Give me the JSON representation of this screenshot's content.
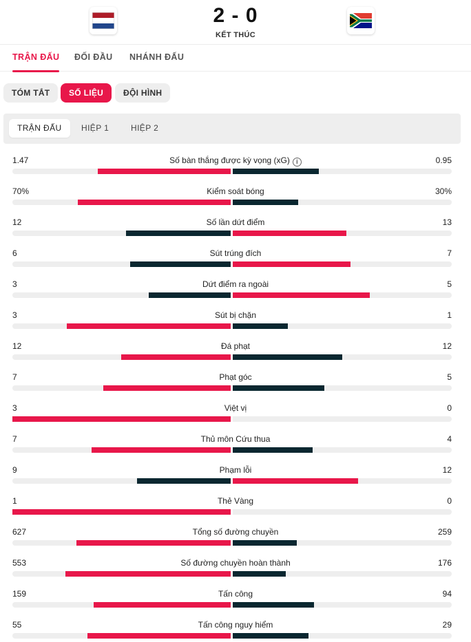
{
  "header": {
    "home_flag": "netherlands-flag",
    "away_flag": "south-africa-flag",
    "score": "2 - 0",
    "status": "KẾT THÚC"
  },
  "main_tabs": [
    "TRẬN ĐẤU",
    "ĐỐI ĐẦU",
    "NHÁNH ĐẤU"
  ],
  "sub_tabs": [
    "TÓM TẮT",
    "SỐ LIỆU",
    "ĐỘI HÌNH"
  ],
  "period_tabs": [
    "TRẬN ĐẤU",
    "HIỆP 1",
    "HIỆP 2"
  ],
  "colors": {
    "accent": "#e8174a",
    "dark": "#0a2730",
    "track": "#eeeeee"
  },
  "stats": [
    {
      "label": "Số bàn thắng được kỳ vọng (xG)",
      "home": "1.47",
      "away": "0.95",
      "home_value": 1.47,
      "away_value": 0.95,
      "info": true
    },
    {
      "label": "Kiểm soát bóng",
      "home": "70%",
      "away": "30%",
      "home_value": 70,
      "away_value": 30
    },
    {
      "label": "Số lần dứt điểm",
      "home": "12",
      "away": "13",
      "home_value": 12,
      "away_value": 13
    },
    {
      "label": "Sút trúng đích",
      "home": "6",
      "away": "7",
      "home_value": 6,
      "away_value": 7
    },
    {
      "label": "Dứt điểm ra ngoài",
      "home": "3",
      "away": "5",
      "home_value": 3,
      "away_value": 5
    },
    {
      "label": "Sút bị chặn",
      "home": "3",
      "away": "1",
      "home_value": 3,
      "away_value": 1
    },
    {
      "label": "Đá phạt",
      "home": "12",
      "away": "12",
      "home_value": 12,
      "away_value": 12
    },
    {
      "label": "Phạt góc",
      "home": "7",
      "away": "5",
      "home_value": 7,
      "away_value": 5
    },
    {
      "label": "Việt vị",
      "home": "3",
      "away": "0",
      "home_value": 3,
      "away_value": 0
    },
    {
      "label": "Thủ môn Cứu thua",
      "home": "7",
      "away": "4",
      "home_value": 7,
      "away_value": 4
    },
    {
      "label": "Phạm lỗi",
      "home": "9",
      "away": "12",
      "home_value": 9,
      "away_value": 12
    },
    {
      "label": "Thẻ Vàng",
      "home": "1",
      "away": "0",
      "home_value": 1,
      "away_value": 0
    },
    {
      "label": "Tổng số đường chuyền",
      "home": "627",
      "away": "259",
      "home_value": 627,
      "away_value": 259
    },
    {
      "label": "Số đường chuyền hoàn thành",
      "home": "553",
      "away": "176",
      "home_value": 553,
      "away_value": 176
    },
    {
      "label": "Tấn công",
      "home": "159",
      "away": "94",
      "home_value": 159,
      "away_value": 94
    },
    {
      "label": "Tấn công nguy hiểm",
      "home": "55",
      "away": "29",
      "home_value": 55,
      "away_value": 29
    }
  ]
}
